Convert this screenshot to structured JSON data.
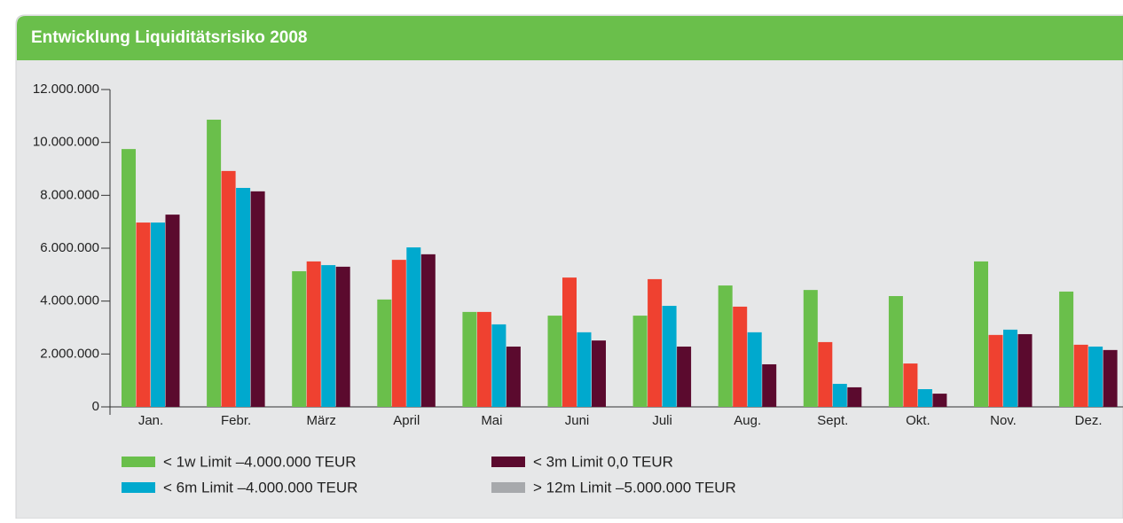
{
  "chart_data": {
    "type": "bar",
    "title": "Entwicklung Liquiditätsrisiko 2008",
    "categories": [
      "Jan.",
      "Febr.",
      "März",
      "April",
      "Mai",
      "Juni",
      "Juli",
      "Aug.",
      "Sept.",
      "Okt.",
      "Nov.",
      "Dez."
    ],
    "series": [
      {
        "name": "< 1w Limit –4.000.000 TEUR",
        "color": "#6abf4b",
        "values": [
          9750000,
          10860000,
          5130000,
          4060000,
          3590000,
          3450000,
          3450000,
          4590000,
          4420000,
          4190000,
          5500000,
          4360000
        ]
      },
      {
        "color": "#ef4130",
        "values": [
          6970000,
          8920000,
          5500000,
          5560000,
          3590000,
          4890000,
          4830000,
          3790000,
          2450000,
          1640000,
          2720000,
          2350000
        ]
      },
      {
        "name": "< 6m Limit –4.000.000 TEUR",
        "color": "#00a9ce",
        "values": [
          6970000,
          8280000,
          5360000,
          6030000,
          3120000,
          2820000,
          3820000,
          2820000,
          870000,
          670000,
          2920000,
          2280000
        ]
      },
      {
        "name": "< 3m Limit 0,0 TEUR",
        "color": "#5b0a2e",
        "values": [
          7270000,
          8150000,
          5300000,
          5770000,
          2280000,
          2510000,
          2280000,
          1610000,
          740000,
          500000,
          2750000,
          2150000
        ]
      },
      {
        "name": "> 12m Limit –5.000.000 TEUR",
        "color": "#a7a9ac",
        "values": [
          null,
          null,
          null,
          null,
          null,
          null,
          null,
          null,
          null,
          null,
          null,
          null
        ]
      }
    ],
    "ylim": [
      0,
      12000000
    ],
    "yticks": [
      0,
      {
        "value": 2000000,
        "label": "2.000.000"
      },
      {
        "value": 4000000,
        "label": "4.000.000"
      },
      {
        "value": 6000000,
        "label": "6.000.000"
      },
      {
        "value": 8000000,
        "label": "8.000.000"
      },
      {
        "value": 10000000,
        "label": "10.000.000"
      },
      {
        "value": 12000000,
        "label": "12.000.000"
      }
    ]
  }
}
